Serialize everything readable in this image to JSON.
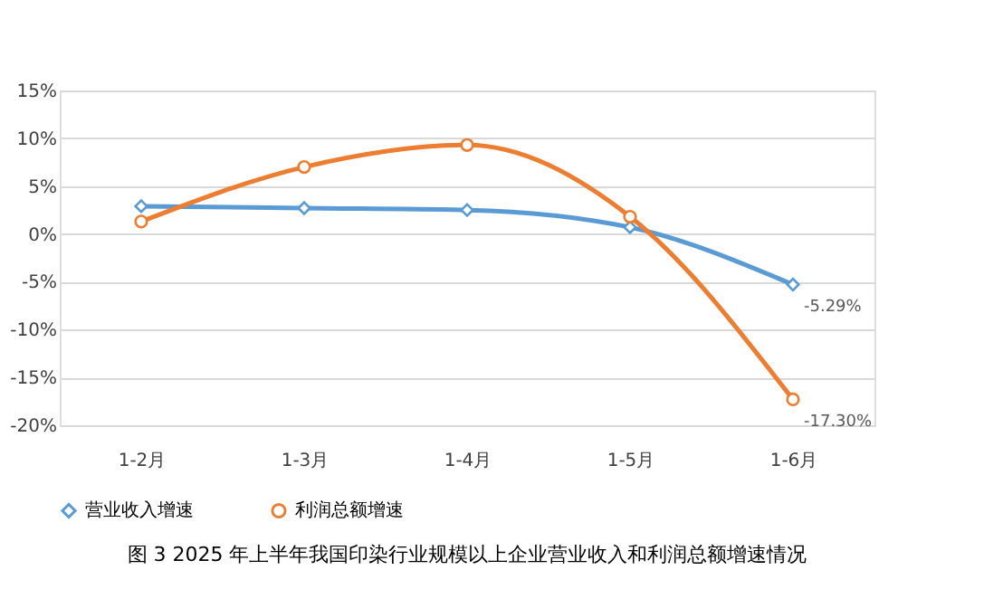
{
  "chart_data": {
    "type": "line",
    "title": "图 3 2025 年上半年我国印染行业规模以上企业营业收入和利润总额增速情况",
    "categories": [
      "1-2月",
      "1-3月",
      "1-4月",
      "1-5月",
      "1-6月"
    ],
    "series": [
      {
        "name": "营业收入增速",
        "color": "#5b9bd5",
        "marker": "diamond",
        "values": [
          2.9,
          2.7,
          2.5,
          0.7,
          -5.29
        ],
        "value_labels": [
          null,
          null,
          null,
          null,
          "-5.29%"
        ]
      },
      {
        "name": "利润总额增速",
        "color": "#ed7d31",
        "marker": "circle",
        "values": [
          1.3,
          7.0,
          9.3,
          1.8,
          -17.3
        ],
        "value_labels": [
          null,
          null,
          null,
          null,
          "-17.30%"
        ]
      }
    ],
    "ylim": [
      -20,
      15
    ],
    "yticks": [
      {
        "value": -20,
        "label": "-20%"
      },
      {
        "value": -15,
        "label": "-15%"
      },
      {
        "value": -10,
        "label": "-10%"
      },
      {
        "value": -5,
        "label": "-5%"
      },
      {
        "value": 0,
        "label": "0%"
      },
      {
        "value": 5,
        "label": "5%"
      },
      {
        "value": 10,
        "label": "10%"
      },
      {
        "value": 15,
        "label": "15%"
      }
    ],
    "grid": "y",
    "legend": "bottom",
    "line_style": "solid"
  }
}
